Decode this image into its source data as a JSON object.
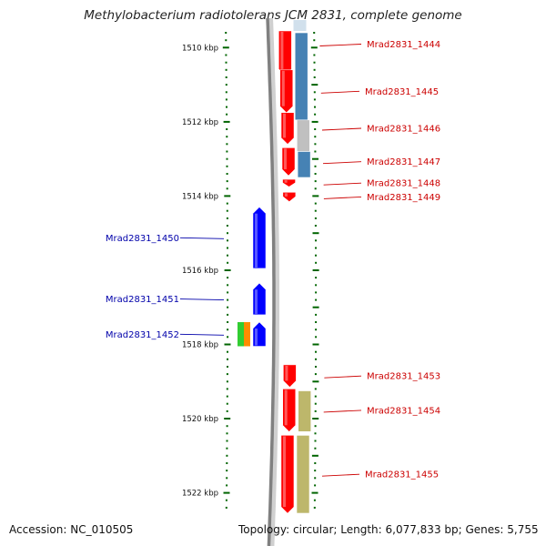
{
  "title": "Methylobacterium radiotolerans JCM 2831, complete genome",
  "footer": {
    "accession": "Accession: NC_010505",
    "topology": "Topology: circular; Length: 6,077,833 bp; Genes: 5,755"
  },
  "ruler": {
    "start_kbp": 1509.55,
    "end_kbp": 1522.55,
    "labels": [
      "1510 kbp",
      "1512 kbp",
      "1514 kbp",
      "1516 kbp",
      "1518 kbp",
      "1520 kbp",
      "1522 kbp"
    ],
    "label_kbp": [
      1510,
      1512,
      1514,
      1516,
      1518,
      1520,
      1522
    ]
  },
  "colors": {
    "forward": "#ff0000",
    "reverse": "#0000ff",
    "label_forward": "#cc0000",
    "label_reverse": "#0000aa",
    "cog_blue": "#4682b4",
    "cog_gray": "#c0c0c0",
    "cog_khaki": "#bdb76b",
    "cog_green": "#32cd32",
    "cog_orange": "#ff8c00",
    "axis": "#808080",
    "tick": "#006400"
  },
  "genes": [
    {
      "id": "Mrad2831_1444",
      "strand": "+",
      "start_kbp": 1509.55,
      "end_kbp": 1510.75
    },
    {
      "id": "Mrad2831_1445",
      "strand": "+",
      "start_kbp": 1510.6,
      "end_kbp": 1511.75
    },
    {
      "id": "Mrad2831_1446",
      "strand": "+",
      "start_kbp": 1511.75,
      "end_kbp": 1512.6
    },
    {
      "id": "Mrad2831_1447",
      "strand": "+",
      "start_kbp": 1512.7,
      "end_kbp": 1513.45
    },
    {
      "id": "Mrad2831_1448",
      "strand": "+",
      "start_kbp": 1513.55,
      "end_kbp": 1513.75
    },
    {
      "id": "Mrad2831_1449",
      "strand": "+",
      "start_kbp": 1513.9,
      "end_kbp": 1514.15
    },
    {
      "id": "Mrad2831_1450",
      "strand": "-",
      "start_kbp": 1514.3,
      "end_kbp": 1515.95
    },
    {
      "id": "Mrad2831_1451",
      "strand": "-",
      "start_kbp": 1516.35,
      "end_kbp": 1517.2
    },
    {
      "id": "Mrad2831_1452",
      "strand": "-",
      "start_kbp": 1517.4,
      "end_kbp": 1518.05
    },
    {
      "id": "Mrad2831_1453",
      "strand": "+",
      "start_kbp": 1518.55,
      "end_kbp": 1519.15
    },
    {
      "id": "Mrad2831_1454",
      "strand": "+",
      "start_kbp": 1519.2,
      "end_kbp": 1520.35
    },
    {
      "id": "Mrad2831_1455",
      "strand": "+",
      "start_kbp": 1520.45,
      "end_kbp": 1522.55
    }
  ],
  "cog_blocks": [
    {
      "gene": "Mrad2831_1444",
      "start_kbp": 1509.6,
      "end_kbp": 1511.95,
      "color": "cog_blue"
    },
    {
      "gene": "Mrad2831_1446",
      "start_kbp": 1511.95,
      "end_kbp": 1512.8,
      "color": "cog_gray"
    },
    {
      "gene": "Mrad2831_1447",
      "start_kbp": 1512.8,
      "end_kbp": 1513.5,
      "color": "cog_blue"
    },
    {
      "gene": "Mrad2831_1454",
      "start_kbp": 1519.25,
      "end_kbp": 1520.35,
      "color": "cog_khaki"
    },
    {
      "gene": "Mrad2831_1455",
      "start_kbp": 1520.45,
      "end_kbp": 1522.55,
      "color": "cog_khaki"
    }
  ],
  "small_blocks": [
    {
      "gene": "Mrad2831_1452",
      "start_kbp": 1517.4,
      "end_kbp": 1518.05,
      "color": "cog_green"
    },
    {
      "gene": "Mrad2831_1452",
      "start_kbp": 1517.4,
      "end_kbp": 1518.05,
      "color": "cog_orange"
    }
  ]
}
